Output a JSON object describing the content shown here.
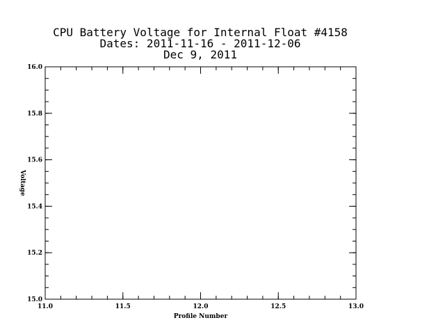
{
  "chart_data": {
    "type": "line",
    "title_lines": [
      "CPU Battery Voltage for Internal Float #4158",
      "Dates:  2011-11-16 -  2011-12-06",
      "Dec  9, 2011"
    ],
    "xlabel": "Profile Number",
    "ylabel": "Voltage",
    "xlim": [
      11.0,
      13.0
    ],
    "ylim": [
      15.0,
      16.0
    ],
    "x_ticks": [
      "11.0",
      "11.5",
      "12.0",
      "12.5",
      "13.0"
    ],
    "y_ticks": [
      "15.0",
      "15.2",
      "15.4",
      "15.6",
      "15.8",
      "16.0"
    ],
    "series": [
      {
        "values": [],
        "x": []
      }
    ],
    "grid": false,
    "point_color": "#cc0000"
  }
}
